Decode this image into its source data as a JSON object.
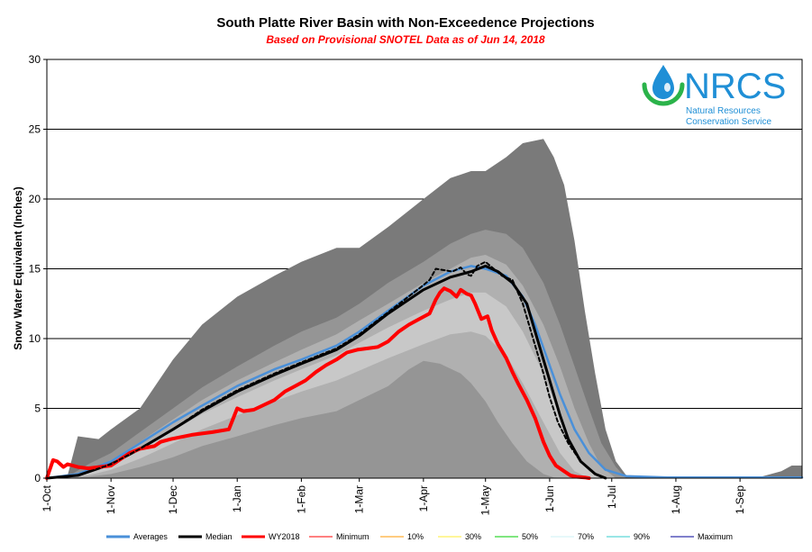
{
  "chart_data": {
    "type": "area",
    "title": "South Platte River Basin with Non-Exceedence Projections",
    "subtitle": "Based on Provisional SNOTEL Data as of Jun 14, 2018",
    "xlabel": "",
    "ylabel": "Snow Water Equivalent (Inches)",
    "ylim": [
      0,
      30
    ],
    "yticks": [
      0,
      5,
      10,
      15,
      20,
      25,
      30
    ],
    "xlim": [
      0,
      365
    ],
    "xticks": [
      {
        "day": 0,
        "label": "1-Oct"
      },
      {
        "day": 31,
        "label": "1-Nov"
      },
      {
        "day": 61,
        "label": "1-Dec"
      },
      {
        "day": 92,
        "label": "1-Jan"
      },
      {
        "day": 123,
        "label": "1-Feb"
      },
      {
        "day": 151,
        "label": "1-Mar"
      },
      {
        "day": 182,
        "label": "1-Apr"
      },
      {
        "day": 212,
        "label": "1-May"
      },
      {
        "day": 243,
        "label": "1-Jun"
      },
      {
        "day": 273,
        "label": "1-Jul"
      },
      {
        "day": 304,
        "label": "1-Aug"
      },
      {
        "day": 335,
        "label": "1-Sep"
      }
    ],
    "bands": [
      {
        "name": "Maximum",
        "color": "#7a7a7a",
        "x": [
          0,
          10,
          15,
          25,
          31,
          45,
          61,
          75,
          92,
          110,
          123,
          140,
          151,
          165,
          182,
          195,
          205,
          212,
          222,
          230,
          240,
          245,
          250,
          255,
          260,
          265,
          270,
          275,
          280,
          300,
          330,
          345,
          355,
          360,
          365
        ],
        "values": [
          0,
          0.2,
          3.0,
          2.8,
          3.5,
          5.0,
          8.5,
          11.0,
          13.0,
          14.5,
          15.5,
          16.5,
          16.5,
          18.0,
          20.0,
          21.5,
          22.0,
          22.0,
          23.0,
          24.0,
          24.3,
          23.0,
          21.0,
          17.0,
          12.0,
          7.5,
          3.5,
          1.2,
          0.2,
          0,
          0,
          0.1,
          0.5,
          0.9,
          0.9
        ]
      },
      {
        "name": "90%",
        "color": "#959595",
        "x": [
          0,
          10,
          20,
          31,
          45,
          61,
          75,
          92,
          110,
          123,
          140,
          151,
          165,
          182,
          195,
          205,
          212,
          222,
          230,
          240,
          248,
          255,
          262,
          268,
          275,
          280
        ],
        "values": [
          0,
          0.1,
          1.0,
          1.8,
          3.3,
          5.0,
          6.5,
          8.0,
          9.5,
          10.5,
          11.5,
          12.5,
          14.0,
          15.5,
          16.8,
          17.5,
          17.8,
          17.5,
          16.5,
          14.0,
          11.0,
          8.0,
          5.0,
          2.5,
          0.8,
          0
        ]
      },
      {
        "name": "70%",
        "color": "#b0b0b0",
        "x": [
          0,
          10,
          20,
          31,
          45,
          61,
          75,
          92,
          110,
          123,
          140,
          151,
          165,
          182,
          195,
          205,
          212,
          222,
          230,
          240,
          248,
          255,
          262,
          268,
          275
        ],
        "values": [
          0,
          0.1,
          0.6,
          1.3,
          2.6,
          4.2,
          5.6,
          7.0,
          8.3,
          9.2,
          10.3,
          11.3,
          12.5,
          14.0,
          15.0,
          15.8,
          16.0,
          15.3,
          13.8,
          11.0,
          8.0,
          5.0,
          2.5,
          0.8,
          0
        ]
      },
      {
        "name": "30%",
        "color": "#c8c8c8",
        "x": [
          0,
          10,
          20,
          31,
          45,
          61,
          75,
          92,
          110,
          123,
          140,
          151,
          165,
          182,
          195,
          205,
          212,
          222,
          230,
          240,
          248,
          255,
          262,
          268
        ],
        "values": [
          0,
          0.05,
          0.4,
          0.9,
          2.0,
          3.4,
          4.6,
          5.8,
          7.0,
          7.8,
          8.8,
          9.7,
          10.8,
          12.0,
          12.8,
          13.3,
          13.3,
          12.3,
          10.5,
          7.5,
          4.5,
          2.0,
          0.5,
          0
        ]
      },
      {
        "name": "10%",
        "color": "#b0b0b0",
        "x": [
          0,
          10,
          20,
          31,
          45,
          61,
          75,
          92,
          110,
          123,
          140,
          151,
          165,
          182,
          195,
          205,
          212,
          222,
          230,
          240,
          248,
          255,
          262
        ],
        "values": [
          0,
          0.05,
          0.2,
          0.6,
          1.4,
          2.5,
          3.5,
          4.5,
          5.5,
          6.2,
          7.0,
          7.7,
          8.6,
          9.6,
          10.3,
          10.5,
          10.2,
          8.8,
          6.8,
          4.0,
          1.8,
          0.5,
          0
        ]
      },
      {
        "name": "Minimum",
        "color": "#959595",
        "x": [
          0,
          10,
          20,
          31,
          45,
          61,
          75,
          92,
          110,
          123,
          140,
          151,
          165,
          175,
          182,
          190,
          200,
          205,
          212,
          218,
          225,
          232,
          240,
          245,
          250
        ],
        "values": [
          0,
          0,
          0.1,
          0.3,
          0.8,
          1.5,
          2.3,
          3.0,
          3.8,
          4.3,
          4.8,
          5.6,
          6.6,
          7.8,
          8.4,
          8.2,
          7.5,
          6.8,
          5.5,
          4.0,
          2.5,
          1.2,
          0.3,
          0.05,
          0
        ]
      }
    ],
    "series": [
      {
        "name": "Averages",
        "color": "#4a90d9",
        "width": 2.5,
        "x": [
          0,
          15,
          31,
          45,
          61,
          75,
          92,
          110,
          123,
          140,
          151,
          165,
          182,
          195,
          205,
          212,
          222,
          230,
          236,
          242,
          248,
          255,
          262,
          270,
          280,
          300,
          330,
          365
        ],
        "values": [
          0,
          0.3,
          1.2,
          2.5,
          4.0,
          5.2,
          6.6,
          7.8,
          8.5,
          9.5,
          10.5,
          12.0,
          13.8,
          14.8,
          15.2,
          15.0,
          14.5,
          13.0,
          11.0,
          8.5,
          6.0,
          3.5,
          1.8,
          0.6,
          0.15,
          0.05,
          0.05,
          0.05
        ]
      },
      {
        "name": "Median",
        "color": "#000000",
        "width": 3,
        "x": [
          0,
          15,
          31,
          45,
          61,
          75,
          92,
          110,
          123,
          140,
          151,
          165,
          182,
          195,
          205,
          212,
          218,
          225,
          232,
          238,
          243,
          248,
          252,
          258,
          265,
          270
        ],
        "values": [
          0,
          0.2,
          1.0,
          2.1,
          3.5,
          4.8,
          6.2,
          7.4,
          8.2,
          9.2,
          10.2,
          11.8,
          13.5,
          14.4,
          14.8,
          15.2,
          14.8,
          14.0,
          12.5,
          9.5,
          7.0,
          4.5,
          2.8,
          1.2,
          0.3,
          0
        ]
      },
      {
        "name": "WY2018",
        "color": "#ff0000",
        "width": 4,
        "x": [
          0,
          3,
          5,
          8,
          10,
          15,
          20,
          31,
          40,
          45,
          52,
          55,
          60,
          70,
          80,
          88,
          92,
          95,
          100,
          110,
          115,
          120,
          125,
          130,
          135,
          140,
          145,
          150,
          155,
          160,
          165,
          170,
          175,
          180,
          185,
          188,
          190,
          192,
          195,
          198,
          200,
          203,
          205,
          207,
          210,
          213,
          215,
          218,
          222,
          225,
          228,
          232,
          236,
          240,
          243,
          246,
          250,
          253,
          256,
          260,
          262
        ],
        "values": [
          0,
          1.3,
          1.2,
          0.8,
          1.0,
          0.8,
          0.7,
          0.9,
          1.8,
          2.1,
          2.3,
          2.6,
          2.8,
          3.1,
          3.3,
          3.5,
          5.0,
          4.8,
          4.9,
          5.6,
          6.2,
          6.6,
          7.0,
          7.6,
          8.1,
          8.5,
          9.0,
          9.2,
          9.3,
          9.4,
          9.8,
          10.5,
          11.0,
          11.4,
          11.8,
          12.8,
          13.3,
          13.6,
          13.4,
          13.0,
          13.5,
          13.2,
          13.1,
          12.5,
          11.4,
          11.6,
          10.6,
          9.6,
          8.6,
          7.6,
          6.7,
          5.6,
          4.3,
          2.6,
          1.6,
          0.9,
          0.5,
          0.2,
          0.1,
          0.05,
          0
        ]
      },
      {
        "name": "Dashed",
        "color": "#000000",
        "width": 2,
        "dash": "4,3",
        "legend": false,
        "x": [
          0,
          15,
          31,
          45,
          61,
          75,
          92,
          110,
          123,
          140,
          151,
          165,
          180,
          185,
          188,
          192,
          196,
          200,
          203,
          205,
          208,
          212,
          216,
          220,
          225,
          230,
          235,
          240,
          243,
          247,
          252,
          258,
          265,
          270
        ],
        "values": [
          0,
          0.2,
          1.0,
          2.1,
          3.5,
          4.9,
          6.3,
          7.5,
          8.3,
          9.3,
          10.3,
          11.9,
          13.6,
          14.2,
          15.0,
          14.9,
          14.8,
          15.1,
          14.6,
          14.5,
          15.2,
          15.5,
          15.0,
          14.5,
          14.2,
          12.5,
          10.0,
          7.5,
          5.8,
          4.0,
          2.5,
          1.2,
          0.3,
          0
        ]
      }
    ],
    "legend": [
      {
        "name": "Averages",
        "color": "#4a90d9",
        "width": 3
      },
      {
        "name": "Median",
        "color": "#000000",
        "width": 3
      },
      {
        "name": "WY2018",
        "color": "#ff0000",
        "width": 3
      },
      {
        "name": "Minimum",
        "color": "#ff0000",
        "width": 1
      },
      {
        "name": "10%",
        "color": "#ff9900",
        "width": 1
      },
      {
        "name": "30%",
        "color": "#ffee33",
        "width": 1
      },
      {
        "name": "50%",
        "color": "#00cc00",
        "width": 1
      },
      {
        "name": "70%",
        "color": "#ccf2f5",
        "width": 1
      },
      {
        "name": "90%",
        "color": "#33cccc",
        "width": 1
      },
      {
        "name": "Maximum",
        "color": "#000099",
        "width": 1
      }
    ],
    "grid": true,
    "legend_position": "bottom"
  },
  "logo": {
    "name": "NRCS",
    "line1": "Natural Resources",
    "line2": "Conservation Service",
    "colors": {
      "blue": "#1f8fd6",
      "green": "#2bb34a"
    }
  }
}
